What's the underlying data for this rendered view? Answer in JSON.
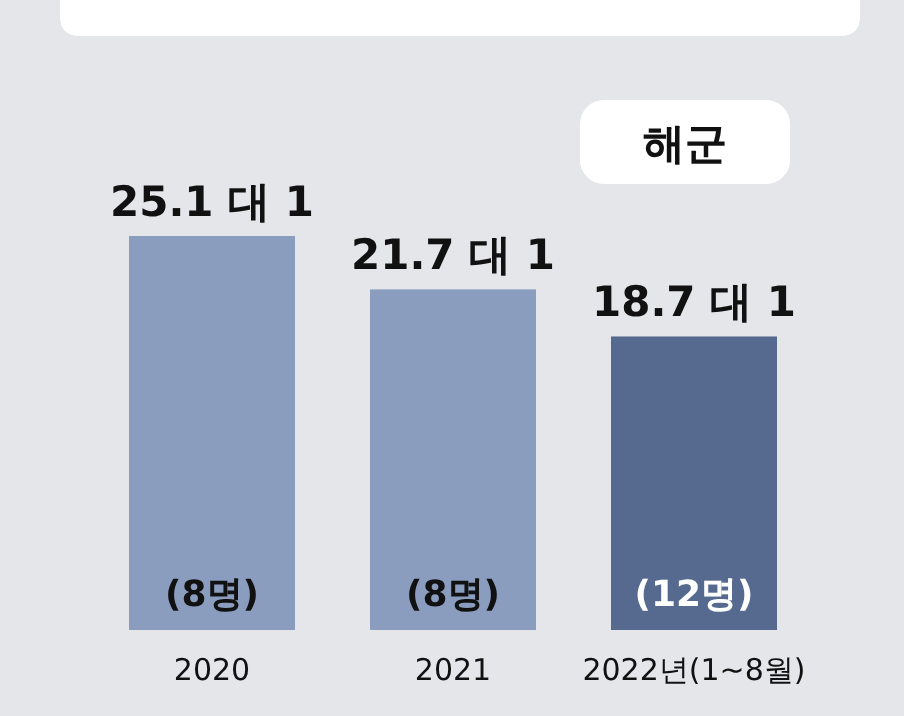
{
  "chart_data": {
    "type": "bar",
    "title": "해군",
    "categories": [
      "2020",
      "2021",
      "2022년(1~8월)"
    ],
    "values": [
      25.1,
      21.7,
      18.7
    ],
    "colors": [
      "#8a9dbf",
      "#8a9dbf",
      "#566a8f"
    ],
    "value_labels": [
      "25.1 대 1",
      "21.7 대 1",
      "18.7 대 1"
    ],
    "annotations": [
      "(8명)",
      "(8명)",
      "(12명)"
    ]
  }
}
